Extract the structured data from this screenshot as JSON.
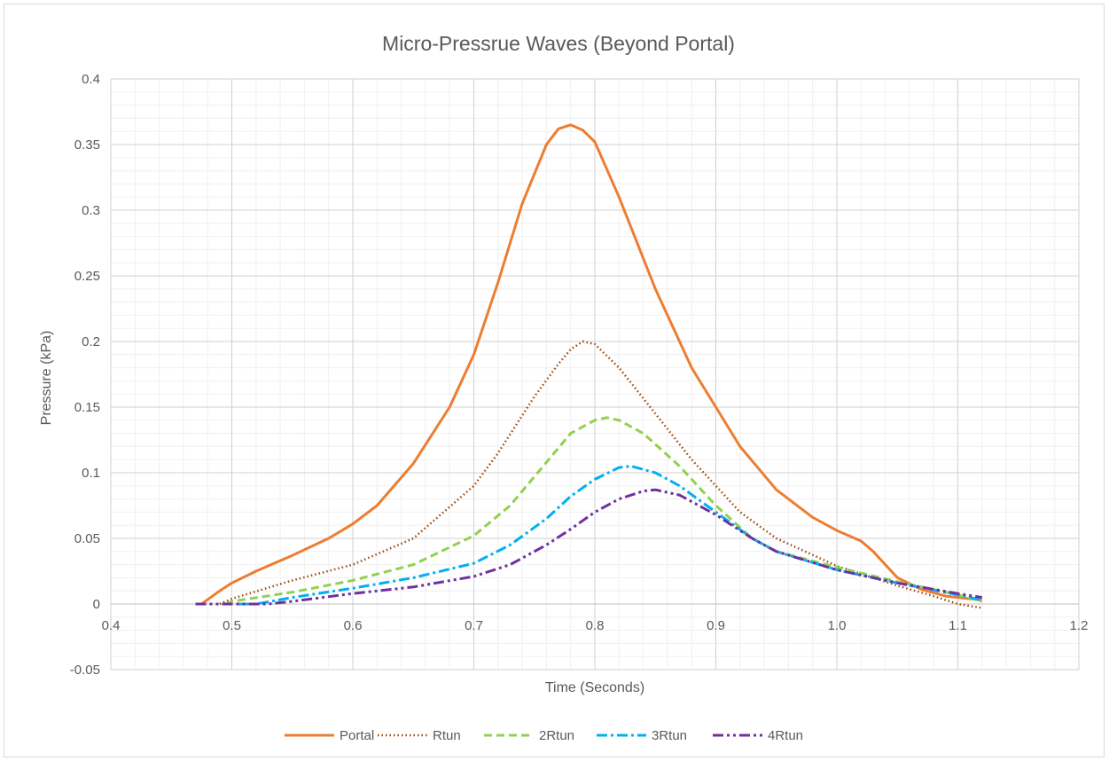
{
  "chart_data": {
    "type": "line",
    "title": "Micro-Pressrue Waves (Beyond Portal)",
    "xlabel": "Time (Seconds)",
    "ylabel": "Pressure (kPa)",
    "xlim": [
      0.4,
      1.2
    ],
    "ylim": [
      -0.05,
      0.4
    ],
    "x_ticks": [
      "0.4",
      "0.5",
      "0.6",
      "0.7",
      "0.8",
      "0.9",
      "1.0",
      "1.1",
      "1.2"
    ],
    "y_ticks": [
      "-0.05",
      "0",
      "0.05",
      "0.1",
      "0.15",
      "0.2",
      "0.25",
      "0.3",
      "0.35",
      "0.4"
    ],
    "grid": true,
    "legend_position": "bottom",
    "series": [
      {
        "name": "Portal",
        "color": "#ED7D31",
        "dash": "solid",
        "x": [
          0.475,
          0.49,
          0.5,
          0.52,
          0.55,
          0.58,
          0.6,
          0.62,
          0.65,
          0.68,
          0.7,
          0.72,
          0.74,
          0.76,
          0.77,
          0.78,
          0.79,
          0.8,
          0.82,
          0.85,
          0.88,
          0.9,
          0.92,
          0.95,
          0.98,
          1.0,
          1.02,
          1.03,
          1.05,
          1.07,
          1.09,
          1.1,
          1.12
        ],
        "values": [
          0.0,
          0.01,
          0.016,
          0.025,
          0.037,
          0.05,
          0.061,
          0.075,
          0.107,
          0.15,
          0.19,
          0.245,
          0.305,
          0.35,
          0.362,
          0.365,
          0.361,
          0.352,
          0.31,
          0.24,
          0.18,
          0.15,
          0.12,
          0.087,
          0.066,
          0.056,
          0.048,
          0.04,
          0.02,
          0.011,
          0.006,
          0.005,
          0.003
        ]
      },
      {
        "name": "Rtun",
        "color": "#9E480E",
        "dash": "dotted",
        "x": [
          0.49,
          0.5,
          0.55,
          0.6,
          0.65,
          0.7,
          0.72,
          0.75,
          0.77,
          0.78,
          0.79,
          0.8,
          0.82,
          0.85,
          0.88,
          0.9,
          0.92,
          0.95,
          1.0,
          1.05,
          1.08,
          1.1,
          1.12
        ],
        "values": [
          0.0,
          0.004,
          0.018,
          0.03,
          0.05,
          0.09,
          0.115,
          0.158,
          0.183,
          0.194,
          0.2,
          0.198,
          0.18,
          0.145,
          0.11,
          0.09,
          0.07,
          0.05,
          0.029,
          0.014,
          0.006,
          0.0,
          -0.003
        ]
      },
      {
        "name": "2Rtun",
        "color": "#92D050",
        "dash": "dashed",
        "x": [
          0.495,
          0.5,
          0.55,
          0.6,
          0.65,
          0.7,
          0.73,
          0.76,
          0.78,
          0.8,
          0.81,
          0.82,
          0.84,
          0.87,
          0.9,
          0.93,
          0.95,
          1.0,
          1.05,
          1.1,
          1.12
        ],
        "values": [
          0.0,
          0.002,
          0.009,
          0.018,
          0.03,
          0.052,
          0.075,
          0.108,
          0.13,
          0.14,
          0.142,
          0.14,
          0.13,
          0.105,
          0.075,
          0.05,
          0.04,
          0.028,
          0.017,
          0.007,
          0.002
        ]
      },
      {
        "name": "3Rtun",
        "color": "#00B0F0",
        "dash": "dashdot",
        "x": [
          0.505,
          0.52,
          0.55,
          0.6,
          0.65,
          0.7,
          0.73,
          0.76,
          0.78,
          0.8,
          0.82,
          0.83,
          0.85,
          0.87,
          0.9,
          0.93,
          0.95,
          1.0,
          1.05,
          1.1,
          1.12
        ],
        "values": [
          0.0,
          0.0,
          0.005,
          0.012,
          0.02,
          0.031,
          0.045,
          0.065,
          0.082,
          0.095,
          0.104,
          0.105,
          0.1,
          0.09,
          0.07,
          0.05,
          0.04,
          0.026,
          0.016,
          0.007,
          0.003
        ]
      },
      {
        "name": "4Rtun",
        "color": "#7030A0",
        "dash": "dashdotdot",
        "x": [
          0.47,
          0.5,
          0.53,
          0.55,
          0.6,
          0.65,
          0.7,
          0.73,
          0.76,
          0.78,
          0.8,
          0.82,
          0.84,
          0.85,
          0.87,
          0.9,
          0.93,
          0.95,
          1.0,
          1.05,
          1.1,
          1.12
        ],
        "values": [
          0.0,
          0.0,
          0.0,
          0.002,
          0.008,
          0.013,
          0.021,
          0.03,
          0.045,
          0.057,
          0.07,
          0.08,
          0.086,
          0.087,
          0.083,
          0.068,
          0.05,
          0.04,
          0.026,
          0.016,
          0.008,
          0.005
        ]
      }
    ]
  }
}
